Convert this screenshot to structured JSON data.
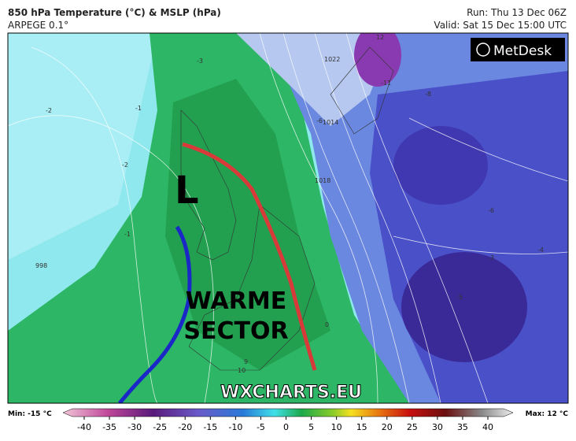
{
  "header": {
    "title": "850 hPa Temperature (°C) & MSLP (hPa)",
    "model": "ARPEGE 0.1°",
    "run": "Run: Thu 13 Dec 06Z",
    "valid": "Valid: Sat 15 Dec 15:00 UTC"
  },
  "map": {
    "logo": "MetDesk",
    "watermark": "WXCHARTS.EU",
    "low_marker": "L",
    "annotation_line1": "WARME",
    "annotation_line2": "SECTOR",
    "contour_labels": [
      "-1",
      "-2",
      "-3",
      "-2",
      "-1",
      "998",
      "1014",
      "1018",
      "1022",
      "-6",
      "-8",
      "-11",
      "12",
      "-6",
      "-5",
      "-4",
      "-3",
      "0",
      "10",
      "9"
    ]
  },
  "colorbar": {
    "min_label": "Min: -15 °C",
    "max_label": "Max: 12 °C",
    "ticks": [
      -40,
      -35,
      -30,
      -25,
      -20,
      -15,
      -10,
      -5,
      0,
      5,
      10,
      15,
      20,
      25,
      30,
      35,
      40
    ]
  }
}
